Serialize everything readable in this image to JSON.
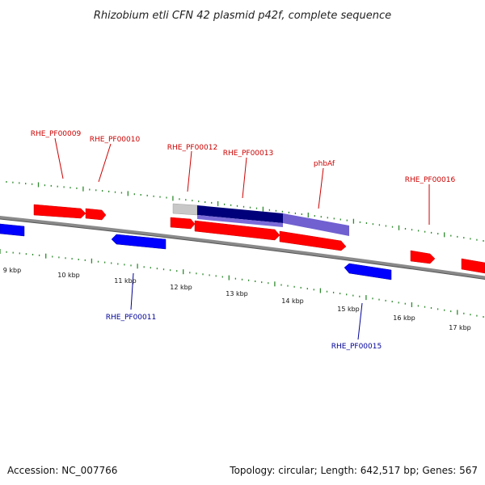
{
  "title": "Rhizobium etli CFN 42 plasmid p42f, complete sequence",
  "footer": {
    "accession": "Accession: NC_007766",
    "summary": "Topology: circular; Length: 642,517 bp; Genes: 567"
  },
  "colors": {
    "backbone": "#8a8a8a",
    "tick": "#2e8b2e",
    "forward_gene": "#ff0000",
    "reverse_gene": "#0000ff",
    "forward_label": "#cc0000",
    "reverse_label": "#000099",
    "highlight_light": "#c0c0c0",
    "highlight_dark": "#00007a",
    "highlight_mid": "#7060d0"
  },
  "scale": [
    "9 kbp",
    "10 kbp",
    "11 kbp",
    "12 kbp",
    "13 kbp",
    "14 kbp",
    "15 kbp",
    "16 kbp",
    "17 kbp"
  ],
  "gene_labels": [
    {
      "text": "RHE_PF00009",
      "strand": "forward"
    },
    {
      "text": "RHE_PF00010",
      "strand": "forward"
    },
    {
      "text": "RHE_PF00012",
      "strand": "forward"
    },
    {
      "text": "RHE_PF00013",
      "strand": "forward"
    },
    {
      "text": "phbAf",
      "strand": "forward"
    },
    {
      "text": "RHE_PF00016",
      "strand": "forward"
    },
    {
      "text": "RHE_PF00011",
      "strand": "reverse"
    },
    {
      "text": "RHE_PF00015",
      "strand": "reverse"
    }
  ]
}
